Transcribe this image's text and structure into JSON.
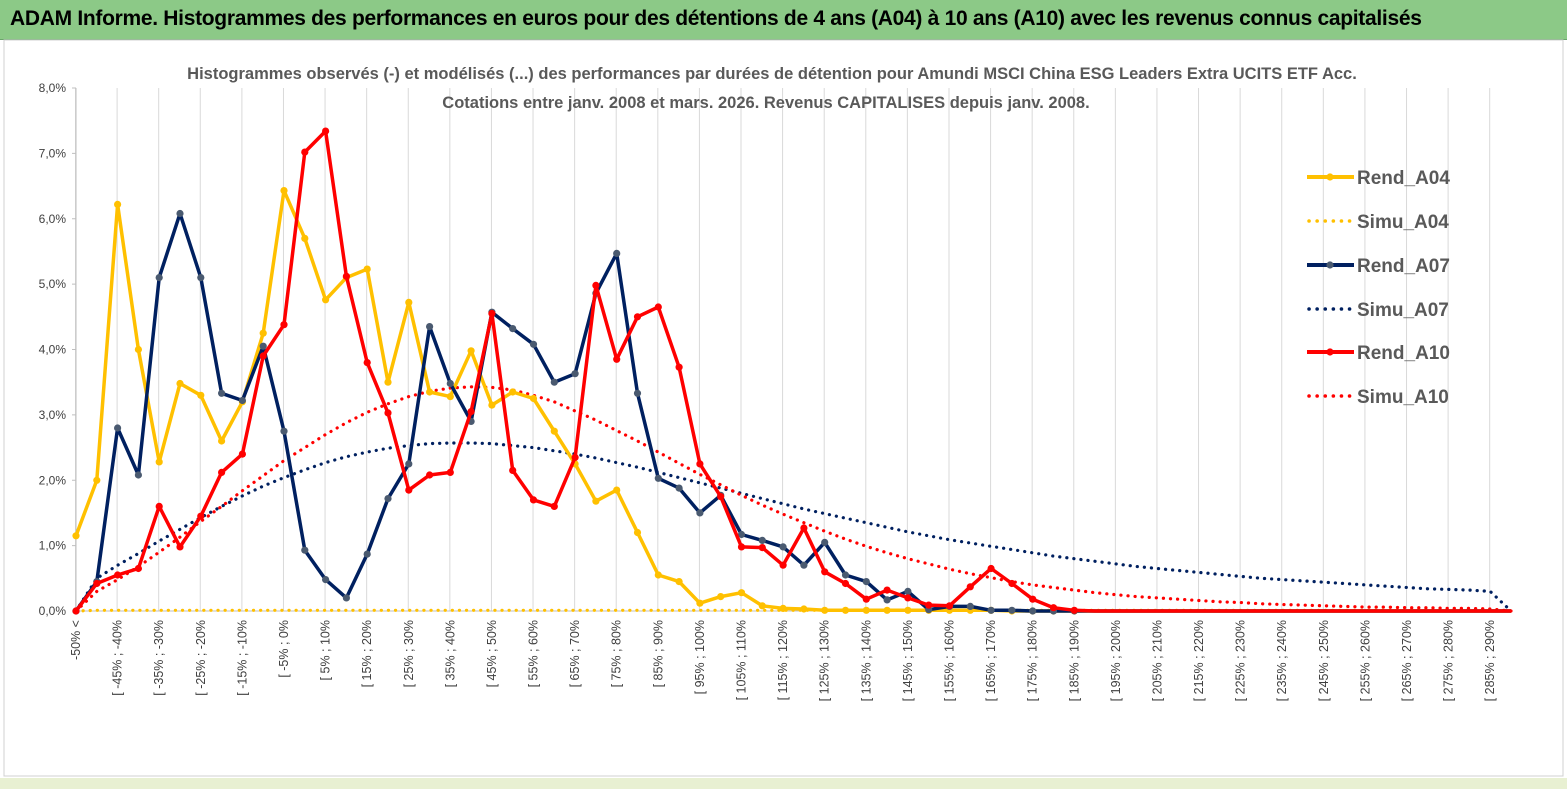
{
  "header": {
    "title": "ADAM Informe. Histogrammes des performances en euros pour des détentions de 4 ans (A04) à 10 ans (A10) avec les revenus connus capitalisés"
  },
  "chart_data": {
    "type": "line",
    "title_line1": "Histogrammes observés (-) et modélisés (...) des performances par durées de détention pour Amundi MSCI China ESG Leaders Extra UCITS ETF Acc.",
    "title_line2": "Cotations entre janv. 2008 et mars. 2026. Revenus CAPITALISES depuis janv. 2008.",
    "ylabel": "",
    "xlabel": "",
    "ylim": [
      0,
      8
    ],
    "yticks": [
      "0,0%",
      "1,0%",
      "2,0%",
      "3,0%",
      "4,0%",
      "5,0%",
      "6,0%",
      "7,0%",
      "8,0%"
    ],
    "tick_labels": [
      "-50% <",
      "[ -45% ; -40%",
      "[ -35% ; -30%",
      "[ -25% ; -20%",
      "[ -15% ; -10%",
      "[ -5% ; 0%",
      "[ 5% ; 10%",
      "[ 15% ; 20%",
      "[ 25% ; 30%",
      "[ 35% ; 40%",
      "[ 45% ; 50%",
      "[ 55% ; 60%",
      "[ 65% ; 70%",
      "[ 75% ; 80%",
      "[ 85% ; 90%",
      "[ 95% ; 100%",
      "[ 105% ; 110%",
      "[ 115% ; 120%",
      "[ 125% ; 130%",
      "[ 135% ; 140%",
      "[ 145% ; 150%",
      "[ 155% ; 160%",
      "[ 165% ; 170%",
      "[ 175% ; 180%",
      "[ 185% ; 190%",
      "[ 195% ; 200%",
      "[ 205% ; 210%",
      "[ 215% ; 220%",
      "[ 225% ; 230%",
      "[ 235% ; 240%",
      "[ 245% ; 250%",
      "[ 255% ; 260%",
      "[ 265% ; 270%",
      "[ 275% ; 280%",
      "[ 285% ; 290%"
    ],
    "n_categories": 70,
    "legend_position": "right",
    "series": [
      {
        "name": "Rend_A04",
        "style": "solid",
        "markers": true,
        "color": "#ffc000",
        "values": [
          1.15,
          2.0,
          6.22,
          4.0,
          2.28,
          3.48,
          3.3,
          2.6,
          3.2,
          4.25,
          6.43,
          5.7,
          4.76,
          5.1,
          5.23,
          3.5,
          4.72,
          3.35,
          3.28,
          3.98,
          3.15,
          3.35,
          3.25,
          2.75,
          2.25,
          1.68,
          1.85,
          1.2,
          0.55,
          0.45,
          0.12,
          0.22,
          0.28,
          0.08,
          0.04,
          0.03,
          0.01,
          0.01,
          0.01,
          0.01,
          0.01,
          0.01,
          0.01,
          0.01,
          0.01,
          0.0,
          0.0,
          0.0,
          0.0,
          0.0,
          0.0,
          0.0,
          0.0,
          0.0,
          0.0,
          0.0,
          0.0,
          0.0,
          0.0,
          0.0,
          0.0,
          0.0,
          0.0,
          0.0,
          0.0,
          0.0,
          0.0,
          0.0,
          0.0,
          0.0
        ]
      },
      {
        "name": "Simu_A04",
        "style": "dotted",
        "markers": false,
        "color": "#ffc000",
        "values": [
          0.0,
          0.01,
          0.01,
          0.01,
          0.01,
          0.01,
          0.01,
          0.01,
          0.01,
          0.01,
          0.01,
          0.01,
          0.01,
          0.01,
          0.01,
          0.01,
          0.01,
          0.01,
          0.01,
          0.01,
          0.01,
          0.01,
          0.01,
          0.01,
          0.01,
          0.01,
          0.01,
          0.01,
          0.01,
          0.01,
          0.01,
          0.01,
          0.01,
          0.01,
          0.01,
          0.01,
          0.01,
          0.01,
          0.01,
          0.01,
          0.01,
          0.01,
          0.01,
          0.01,
          0.01,
          0.01,
          0.01,
          0.01,
          0.01,
          0.01,
          0.01,
          0.01,
          0.01,
          0.01,
          0.01,
          0.01,
          0.01,
          0.01,
          0.01,
          0.01,
          0.01,
          0.01,
          0.01,
          0.01,
          0.01,
          0.01,
          0.01,
          0.01,
          0.01,
          0.0
        ]
      },
      {
        "name": "Rend_A07",
        "style": "solid",
        "markers": true,
        "color": "#002060",
        "values": [
          0.0,
          0.45,
          2.8,
          2.08,
          5.1,
          6.08,
          5.1,
          3.33,
          3.22,
          4.05,
          2.75,
          0.93,
          0.48,
          0.2,
          0.87,
          1.72,
          2.25,
          4.35,
          3.48,
          2.9,
          4.57,
          4.32,
          4.08,
          3.5,
          3.63,
          4.86,
          5.47,
          3.33,
          2.03,
          1.88,
          1.5,
          1.77,
          1.17,
          1.08,
          0.98,
          0.7,
          1.05,
          0.55,
          0.45,
          0.17,
          0.3,
          0.02,
          0.07,
          0.07,
          0.01,
          0.01,
          0.0,
          0.0,
          0.0,
          0.0,
          0.0,
          0.0,
          0.0,
          0.0,
          0.0,
          0.0,
          0.0,
          0.0,
          0.0,
          0.0,
          0.0,
          0.0,
          0.0,
          0.0,
          0.0,
          0.0,
          0.0,
          0.0,
          0.0,
          0.0
        ]
      },
      {
        "name": "Simu_A07",
        "style": "dotted",
        "markers": false,
        "color": "#002060",
        "values": [
          0.0,
          0.5,
          0.7,
          0.88,
          1.07,
          1.25,
          1.43,
          1.6,
          1.76,
          1.91,
          2.04,
          2.16,
          2.27,
          2.36,
          2.43,
          2.49,
          2.53,
          2.56,
          2.57,
          2.57,
          2.56,
          2.53,
          2.5,
          2.45,
          2.4,
          2.34,
          2.27,
          2.2,
          2.12,
          2.04,
          1.96,
          1.88,
          1.8,
          1.72,
          1.64,
          1.56,
          1.49,
          1.42,
          1.35,
          1.28,
          1.21,
          1.15,
          1.09,
          1.04,
          0.99,
          0.94,
          0.89,
          0.84,
          0.8,
          0.76,
          0.72,
          0.68,
          0.65,
          0.62,
          0.59,
          0.56,
          0.53,
          0.5,
          0.48,
          0.46,
          0.44,
          0.42,
          0.4,
          0.38,
          0.36,
          0.34,
          0.33,
          0.32,
          0.3,
          0.0
        ]
      },
      {
        "name": "Rend_A10",
        "style": "solid",
        "markers": true,
        "color": "#ff0000",
        "values": [
          0.0,
          0.42,
          0.55,
          0.65,
          1.6,
          0.98,
          1.45,
          2.12,
          2.4,
          3.9,
          4.38,
          7.02,
          7.34,
          5.12,
          3.8,
          3.03,
          1.85,
          2.08,
          2.12,
          3.05,
          4.55,
          2.15,
          1.7,
          1.6,
          2.35,
          4.98,
          3.85,
          4.5,
          4.65,
          3.73,
          2.25,
          1.75,
          0.98,
          0.97,
          0.7,
          1.27,
          0.6,
          0.42,
          0.18,
          0.32,
          0.2,
          0.09,
          0.08,
          0.37,
          0.65,
          0.42,
          0.18,
          0.05,
          0.01,
          0.0,
          0.0,
          0.0,
          0.0,
          0.0,
          0.0,
          0.0,
          0.0,
          0.0,
          0.0,
          0.0,
          0.0,
          0.0,
          0.0,
          0.0,
          0.0,
          0.0,
          0.0,
          0.0,
          0.0,
          0.0
        ]
      },
      {
        "name": "Simu_A10",
        "style": "dotted",
        "markers": false,
        "color": "#ff0000",
        "values": [
          0.0,
          0.3,
          0.48,
          0.68,
          0.9,
          1.13,
          1.37,
          1.6,
          1.84,
          2.07,
          2.3,
          2.5,
          2.7,
          2.88,
          3.04,
          3.17,
          3.28,
          3.36,
          3.41,
          3.43,
          3.42,
          3.38,
          3.3,
          3.2,
          3.06,
          2.92,
          2.76,
          2.6,
          2.43,
          2.26,
          2.09,
          1.93,
          1.77,
          1.62,
          1.48,
          1.35,
          1.22,
          1.1,
          0.99,
          0.89,
          0.8,
          0.72,
          0.64,
          0.57,
          0.51,
          0.45,
          0.4,
          0.36,
          0.32,
          0.28,
          0.25,
          0.22,
          0.2,
          0.18,
          0.16,
          0.14,
          0.13,
          0.11,
          0.1,
          0.09,
          0.08,
          0.07,
          0.06,
          0.06,
          0.05,
          0.05,
          0.04,
          0.04,
          0.03,
          0.0
        ]
      }
    ]
  }
}
